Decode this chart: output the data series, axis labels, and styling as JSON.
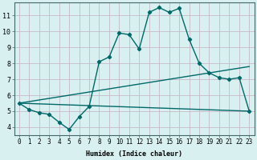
{
  "xlabel": "Humidex (Indice chaleur)",
  "bg_color": "#d8f0f0",
  "grid_color": "#c8b8c8",
  "line_color": "#006868",
  "xlim": [
    -0.5,
    23.5
  ],
  "ylim": [
    3.5,
    11.8
  ],
  "xticks": [
    0,
    1,
    2,
    3,
    4,
    5,
    6,
    7,
    8,
    9,
    10,
    11,
    12,
    13,
    14,
    15,
    16,
    17,
    18,
    19,
    20,
    21,
    22,
    23
  ],
  "yticks": [
    4,
    5,
    6,
    7,
    8,
    9,
    10,
    11
  ],
  "main_x": [
    0,
    1,
    2,
    3,
    4,
    5,
    6,
    7,
    8,
    9,
    10,
    11,
    12,
    13,
    14,
    15,
    16,
    17,
    18,
    19,
    20,
    21,
    22,
    23
  ],
  "main_y": [
    5.5,
    5.1,
    4.9,
    4.8,
    4.3,
    3.85,
    4.65,
    5.3,
    8.1,
    8.4,
    9.9,
    9.8,
    8.9,
    11.2,
    11.5,
    11.2,
    11.45,
    9.5,
    8.0,
    7.4,
    7.1,
    7.0,
    7.1,
    5.0
  ],
  "line2_x": [
    0,
    23
  ],
  "line2_y": [
    5.5,
    5.0
  ],
  "line3_x": [
    0,
    23
  ],
  "line3_y": [
    5.5,
    7.8
  ],
  "xlabel_fontsize": 6,
  "tick_fontsize": 5.5
}
